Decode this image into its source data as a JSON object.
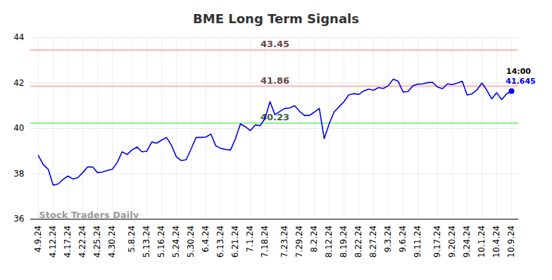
{
  "chart_data": {
    "type": "line",
    "title": "BME Long Term Signals",
    "categories": [
      "4.9.24",
      null,
      null,
      "4.12.24",
      null,
      null,
      "4.17.24",
      null,
      null,
      "4.22.24",
      null,
      null,
      "4.25.24",
      null,
      null,
      "4.30.24",
      null,
      null,
      null,
      "5.8.24",
      null,
      null,
      "5.13.24",
      null,
      null,
      "5.16.24",
      null,
      null,
      "5.24.24",
      null,
      null,
      "5.30.24",
      null,
      null,
      "6.4.24",
      null,
      null,
      "6.13.24",
      null,
      null,
      "6.21.24",
      null,
      null,
      "7.1.24",
      null,
      null,
      "7.18.24",
      null,
      null,
      null,
      "7.23.24",
      null,
      null,
      "7.29.24",
      null,
      null,
      "8.2.24",
      null,
      null,
      "8.12.24",
      null,
      null,
      "8.19.24",
      null,
      null,
      "8.22.24",
      null,
      null,
      "8.27.24",
      null,
      null,
      "9.3.24",
      null,
      null,
      "9.6.24",
      null,
      null,
      "9.11.24",
      null,
      null,
      null,
      "9.17.24",
      null,
      null,
      "9.20.24",
      null,
      null,
      "9.24.24",
      null,
      null,
      "10.1.24",
      null,
      null,
      "10.4.24",
      null,
      null,
      "10.9.24"
    ],
    "values": [
      38.8,
      38.4,
      38.2,
      37.5,
      37.55,
      37.75,
      37.9,
      37.77,
      37.83,
      38.05,
      38.3,
      38.3,
      38.05,
      38.08,
      38.15,
      38.2,
      38.5,
      38.97,
      38.85,
      39.05,
      39.18,
      38.97,
      38.99,
      39.4,
      39.35,
      39.48,
      39.6,
      39.25,
      38.75,
      38.58,
      38.62,
      39.1,
      39.6,
      39.6,
      39.62,
      39.75,
      39.23,
      39.12,
      39.07,
      39.05,
      39.55,
      40.2,
      40.07,
      39.9,
      40.15,
      40.12,
      40.45,
      41.18,
      40.6,
      40.75,
      40.88,
      40.9,
      41.0,
      40.75,
      40.57,
      40.57,
      40.72,
      40.88,
      39.55,
      40.2,
      40.72,
      40.95,
      41.18,
      41.48,
      41.53,
      41.5,
      41.65,
      41.73,
      41.68,
      41.8,
      41.76,
      41.88,
      42.17,
      42.08,
      41.6,
      41.63,
      41.88,
      41.95,
      41.96,
      42.02,
      42.03,
      41.82,
      41.75,
      41.96,
      41.93,
      42.0,
      42.08,
      41.47,
      41.52,
      41.7,
      42.0,
      41.68,
      41.3,
      41.57,
      41.27,
      41.52,
      41.645
    ],
    "color": "#0000ee",
    "ylim": [
      36,
      44
    ],
    "yticks": [
      36,
      38,
      40,
      42,
      44
    ],
    "grid": true,
    "signals": [
      {
        "value": 43.45,
        "color": "#ffb3b3"
      },
      {
        "value": 41.86,
        "color": "#ffb3b3"
      },
      {
        "value": 40.23,
        "color": "#90ee90"
      }
    ],
    "last_point": {
      "time": "14:00"
    },
    "watermark": "Stock Traders Daily"
  }
}
